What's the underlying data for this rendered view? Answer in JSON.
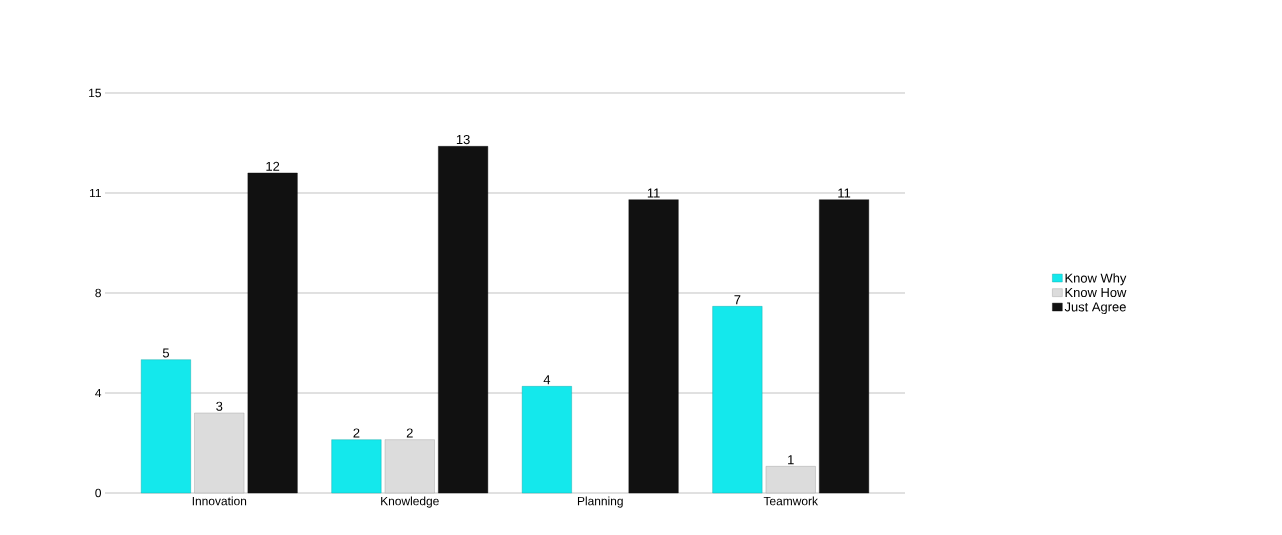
{
  "chart_data": {
    "type": "bar",
    "categories": [
      "Innovation",
      "Knowledge",
      "Planning",
      "Teamwork"
    ],
    "series": [
      {
        "name": "Know Why",
        "color": "#14e8ec",
        "values": [
          5,
          2,
          4,
          7
        ]
      },
      {
        "name": "Know How",
        "color": "#dcdcdc",
        "values": [
          3,
          2,
          null,
          1
        ]
      },
      {
        "name": "Just Agree",
        "color": "#111111",
        "values": [
          12,
          13,
          11,
          11
        ]
      }
    ],
    "ylim": [
      0,
      15
    ],
    "yticks": [
      0,
      {
        "value": 3.75,
        "label": "4"
      },
      {
        "value": 7.5,
        "label": "8"
      },
      {
        "value": 11.25,
        "label": "11"
      },
      15
    ],
    "grid": "y",
    "legend": "right",
    "data_labels": true
  }
}
